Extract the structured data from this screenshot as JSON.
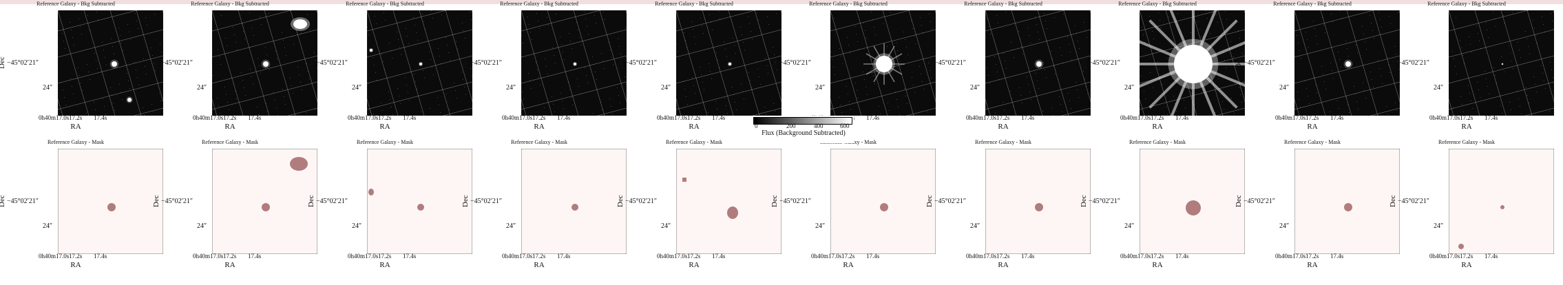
{
  "row1": {
    "title": "Reference Galaxy - Bkg Subtracted",
    "background": "#0b0b0b",
    "grid_color": "#bdbdbd"
  },
  "row2": {
    "title": "Reference Galaxy - Mask",
    "background": "#fdf6f4",
    "mask_color": "#b17c7e"
  },
  "axes": {
    "ylabel": "Dec",
    "xlabel": "RA",
    "ytick_1": "−45°02′21″",
    "ytick_2": "24″",
    "xtick_1": "0h40m17.0s",
    "xtick_2": "17.2s",
    "xtick_3": "17.4s"
  },
  "colorbar": {
    "label": "Flux (Background Subtracted)",
    "ticks": [
      "0",
      "200",
      "400",
      "600"
    ],
    "colormap": "gray"
  },
  "panel_count": 10
}
